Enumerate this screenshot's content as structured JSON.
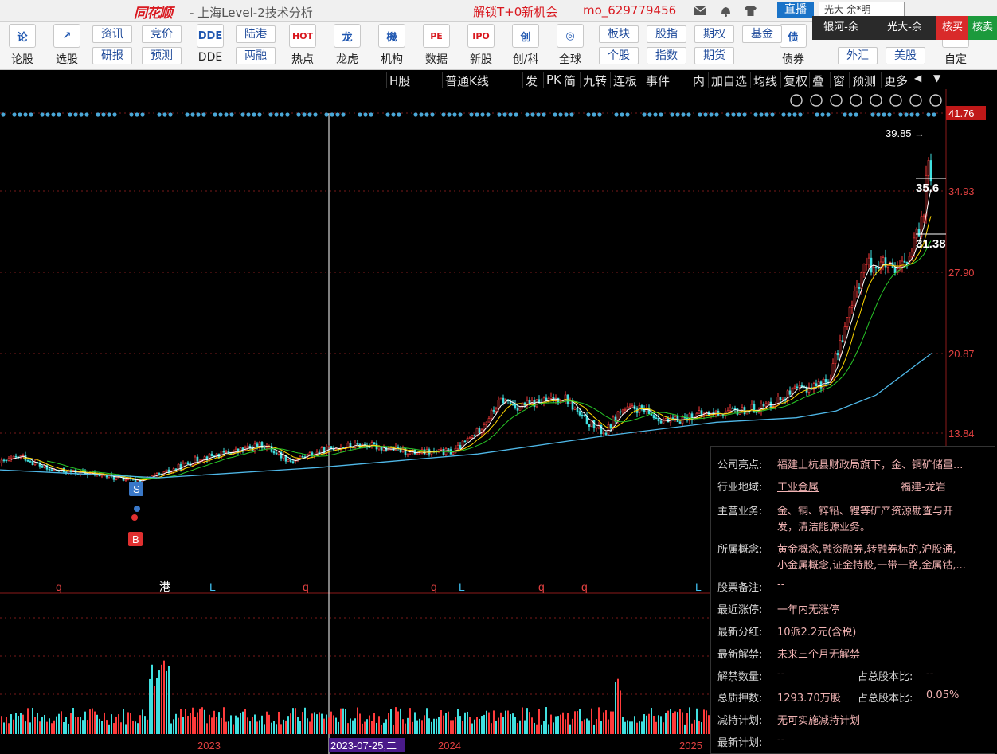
{
  "titlebar": {
    "logo": "同花顺",
    "app_title": "- 上海Level-2技术分析",
    "promo": "解锁T+0新机会",
    "user": "mo_629779456",
    "live_label": "直播",
    "broker_selected": "光大-余*明"
  },
  "broker_popup": {
    "items": [
      "银河-余",
      "光大-余",
      "核买",
      "核卖"
    ]
  },
  "toolbar": {
    "tools": [
      {
        "label": "论股",
        "glyph": "论"
      },
      {
        "label": "选股",
        "glyph": "↗"
      },
      {
        "label": "DDE",
        "glyph": "DDE"
      },
      {
        "label": "热点",
        "glyph": "HOT"
      },
      {
        "label": "龙虎",
        "glyph": "龙"
      },
      {
        "label": "机构",
        "glyph": "機"
      },
      {
        "label": "数据",
        "glyph": "PE"
      },
      {
        "label": "新股",
        "glyph": "IPO"
      },
      {
        "label": "创/科",
        "glyph": "创"
      },
      {
        "label": "全球",
        "glyph": "◎"
      },
      {
        "label": "债券",
        "glyph": "债"
      },
      {
        "label": "自定",
        "glyph": "+"
      }
    ],
    "pills": [
      "资讯",
      "研报",
      "竞价",
      "预测",
      "陆港",
      "两融",
      "板块",
      "个股",
      "股指",
      "指数",
      "期权",
      "期货",
      "基金",
      "外汇",
      "美股"
    ]
  },
  "chart_header": {
    "items": [
      "H股",
      "普通K线",
      "发",
      "PK",
      "简",
      "九转",
      "连板",
      "事件",
      "内",
      "加自选",
      "均线",
      "复权",
      "叠",
      "窗",
      "预测",
      "更多"
    ]
  },
  "chart": {
    "price_labels": [
      "41.76",
      "34.93",
      "27.90",
      "20.87",
      "13.84"
    ],
    "high_label": "39.85",
    "box_labels": [
      "35.6",
      "31.38"
    ],
    "marker_s": "S",
    "marker_b": "B",
    "event_letters": [
      "q",
      "港",
      "L",
      "q",
      "q",
      "L",
      "q",
      "q",
      "L"
    ],
    "date_labels": [
      "2023",
      "2023-07-25,二",
      "2024",
      "2025"
    ],
    "colors": {
      "up": "#ff3b3b",
      "down": "#40e0e0",
      "ma_short": "#ffffff",
      "ma_mid": "#ffd700",
      "ma_long1": "#28c828",
      "ma_long2": "#4fb8e8"
    }
  },
  "info_panel": {
    "rows": [
      {
        "label": "公司亮点:",
        "value": "福建上杭县财政局旗下，金、铜矿储量..."
      },
      {
        "label": "行业地域:",
        "value": "工业金属",
        "extra": "福建-龙岩"
      },
      {
        "label": "主营业务:",
        "value": "金、铜、锌铅、锂等矿产资源勘查与开",
        "value2": "发，清洁能源业务。"
      },
      {
        "label": "所属概念:",
        "value": "黄金概念,融资融券,转融券标的,沪股通,",
        "value2": "小金属概念,证金持股,一带一路,金属钴,..."
      },
      {
        "label": "股票备注:",
        "value": "--"
      },
      {
        "label": "最近涨停:",
        "value": "一年内无涨停"
      },
      {
        "label": "最新分红:",
        "value": "10派2.2元(含税)"
      },
      {
        "label": "最新解禁:",
        "value": "未来三个月无解禁"
      },
      {
        "label": "解禁数量:",
        "value": "--",
        "extra_label": "占总股本比:",
        "extra": "--"
      },
      {
        "label": "总质押数:",
        "value": "1293.70万股",
        "extra_label": "占总股本比:",
        "extra": "0.05%"
      },
      {
        "label": "减持计划:",
        "value": "无可实施减持计划"
      },
      {
        "label": "最新计划:",
        "value": "--"
      }
    ]
  }
}
